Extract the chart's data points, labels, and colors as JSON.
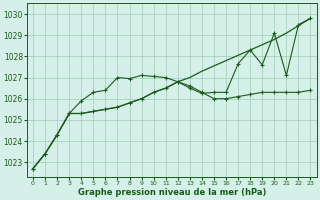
{
  "title": "Graphe pression niveau de la mer (hPa)",
  "bg_color": "#d4f0e8",
  "grid_color": "#a0ccb8",
  "line_color": "#1a5c1a",
  "xlim": [
    -0.5,
    23.5
  ],
  "ylim": [
    1022.3,
    1030.5
  ],
  "yticks": [
    1023,
    1024,
    1025,
    1026,
    1027,
    1028,
    1029,
    1030
  ],
  "xticks": [
    0,
    1,
    2,
    3,
    4,
    5,
    6,
    7,
    8,
    9,
    10,
    11,
    12,
    13,
    14,
    15,
    16,
    17,
    18,
    19,
    20,
    21,
    22,
    23
  ],
  "series1": [
    1022.7,
    1023.4,
    1024.3,
    1025.3,
    1025.9,
    1026.3,
    1026.4,
    1027.0,
    1026.95,
    1027.1,
    1027.05,
    1027.0,
    1026.8,
    1026.5,
    1026.25,
    1026.3,
    1026.3,
    1027.65,
    1028.3,
    1027.6,
    1029.1,
    1027.1,
    1029.5,
    1029.8
  ],
  "series2": [
    1022.7,
    1023.4,
    1024.3,
    1025.3,
    1025.3,
    1025.4,
    1025.5,
    1025.6,
    1025.8,
    1026.0,
    1026.3,
    1026.5,
    1026.8,
    1026.6,
    1026.3,
    1026.0,
    1026.0,
    1026.1,
    1026.2,
    1026.3,
    1026.3,
    1026.3,
    1026.3,
    1026.4
  ],
  "series3": [
    1022.7,
    1023.4,
    1024.3,
    1025.3,
    1025.3,
    1025.4,
    1025.5,
    1025.6,
    1025.8,
    1026.0,
    1026.3,
    1026.5,
    1026.8,
    1027.0,
    1027.3,
    1027.55,
    1027.8,
    1028.05,
    1028.3,
    1028.55,
    1028.8,
    1029.1,
    1029.45,
    1029.8
  ]
}
